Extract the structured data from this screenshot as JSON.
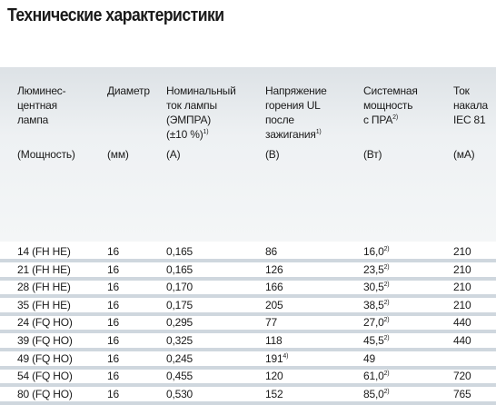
{
  "title": "Технические характеристики",
  "table": {
    "header": [
      {
        "lines": [
          "Люминес-",
          "центная",
          "лампа"
        ],
        "unit": "(Мощность)"
      },
      {
        "lines": [
          "Диаметр"
        ],
        "unit": "(мм)"
      },
      {
        "lines": [
          "Номинальный",
          "ток лампы",
          "(ЭМПРА)",
          {
            "text": "(±10 %)",
            "note": "1)"
          }
        ],
        "unit": "(А)"
      },
      {
        "lines": [
          "Напряжение",
          "горения UL",
          "после",
          {
            "text": "зажигания",
            "note": "1)"
          }
        ],
        "unit": "(В)"
      },
      {
        "lines": [
          "Системная",
          "мощность",
          {
            "text": "с ПРА",
            "note": "2)"
          }
        ],
        "unit": "(Вт)"
      },
      {
        "lines": [
          "Ток",
          "накала",
          "IEC 81"
        ],
        "unit": "(мА)"
      }
    ],
    "rows": [
      [
        "14 (FH HE)",
        "16",
        "0,165",
        "86",
        {
          "text": "16,0",
          "note": "2)"
        },
        "210"
      ],
      [
        "21 (FH HE)",
        "16",
        "0,165",
        "126",
        {
          "text": "23,5",
          "note": "2)"
        },
        "210"
      ],
      [
        "28 (FH HE)",
        "16",
        "0,170",
        "166",
        {
          "text": "30,5",
          "note": "2)"
        },
        "210"
      ],
      [
        "35 (FH HE)",
        "16",
        "0,175",
        "205",
        {
          "text": "38,5",
          "note": "2)"
        },
        "210"
      ],
      [
        "24 (FQ HO)",
        "16",
        "0,295",
        "77",
        {
          "text": "27,0",
          "note": "2)"
        },
        "440"
      ],
      [
        "39 (FQ HO)",
        "16",
        "0,325",
        "118",
        {
          "text": "45,5",
          "note": "2)"
        },
        "440"
      ],
      [
        "49 (FQ HO)",
        "16",
        "0,245",
        {
          "text": "191",
          "note": "4)"
        },
        "49",
        null
      ],
      [
        "54 (FQ HO)",
        "16",
        "0,455",
        "120",
        {
          "text": "61,0",
          "note": "2)"
        },
        "720"
      ],
      [
        "80 (FQ HO)",
        "16",
        "0,530",
        "152",
        {
          "text": "85,0",
          "note": "2)"
        },
        "765"
      ]
    ]
  }
}
